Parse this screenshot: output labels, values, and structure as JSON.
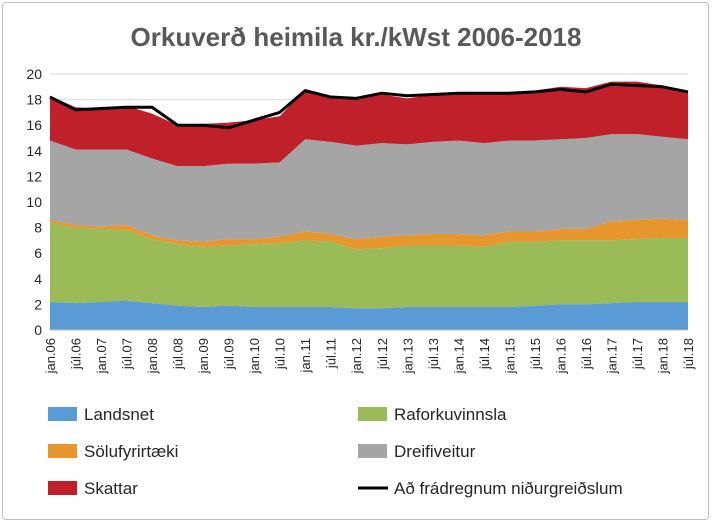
{
  "chart_data": {
    "type": "area",
    "stacked": true,
    "title": "Orkuverð heimila kr./kWst 2006-2018",
    "xlabel": "",
    "ylabel": "",
    "ylim": [
      0,
      20
    ],
    "yticks": [
      0,
      2,
      4,
      6,
      8,
      10,
      12,
      14,
      16,
      18,
      20
    ],
    "grid": true,
    "legend_placement": "bottom",
    "x_tick_labels": [
      "jan.06",
      "júl.06",
      "jan.07",
      "júl.07",
      "jan.08",
      "júl.08",
      "jan.09",
      "júl.09",
      "jan.10",
      "júl.10",
      "jan.11",
      "júl.11",
      "jan.12",
      "júl.12",
      "jan.13",
      "júl.13",
      "jan.14",
      "júl.14",
      "jan.15",
      "júl.15",
      "jan.16",
      "júl.16",
      "jan.17",
      "júl.17",
      "jan.18",
      "júl.18"
    ],
    "series": [
      {
        "name": "Landsnet",
        "color": "#5b9bd5",
        "values": [
          2.2,
          2.1,
          2.2,
          2.3,
          2.1,
          1.9,
          1.8,
          1.9,
          1.8,
          1.8,
          1.8,
          1.8,
          1.7,
          1.7,
          1.8,
          1.8,
          1.8,
          1.8,
          1.8,
          1.9,
          2.0,
          2.0,
          2.1,
          2.2,
          2.2,
          2.2
        ]
      },
      {
        "name": "Raforkuvinnsla",
        "color": "#9bbb59",
        "values": [
          6.2,
          5.9,
          5.7,
          5.5,
          5.0,
          4.8,
          4.7,
          4.7,
          4.9,
          5.0,
          5.2,
          5.1,
          4.6,
          4.7,
          4.8,
          4.8,
          4.8,
          4.7,
          5.1,
          5.0,
          5.0,
          5.0,
          4.9,
          4.9,
          5.0,
          5.0
        ]
      },
      {
        "name": "Sölufyrirtæki",
        "color": "#e8962e",
        "values": [
          0.2,
          0.2,
          0.2,
          0.4,
          0.3,
          0.3,
          0.4,
          0.5,
          0.4,
          0.5,
          0.7,
          0.6,
          0.8,
          0.9,
          0.8,
          0.9,
          0.9,
          0.9,
          0.8,
          0.8,
          0.9,
          0.9,
          1.5,
          1.5,
          1.5,
          1.4
        ]
      },
      {
        "name": "Dreifiveitur",
        "color": "#a5a5a5",
        "values": [
          6.2,
          5.9,
          6.0,
          5.9,
          6.0,
          5.8,
          5.9,
          5.9,
          5.9,
          5.8,
          7.2,
          7.2,
          7.3,
          7.3,
          7.1,
          7.2,
          7.3,
          7.2,
          7.1,
          7.1,
          7.0,
          7.1,
          6.8,
          6.7,
          6.4,
          6.3
        ]
      },
      {
        "name": "Skattar",
        "color": "#c0202a",
        "values": [
          3.5,
          3.3,
          3.2,
          3.4,
          3.5,
          3.2,
          3.3,
          3.2,
          3.4,
          3.6,
          3.9,
          3.5,
          3.7,
          3.8,
          3.6,
          3.7,
          3.7,
          3.8,
          3.8,
          3.9,
          4.1,
          3.9,
          4.1,
          4.1,
          4.0,
          3.8
        ]
      },
      {
        "name": "Að frádregnum niðurgreiðslum",
        "color": "#000000",
        "type": "line",
        "values": [
          18.2,
          17.2,
          17.3,
          17.4,
          17.4,
          16.0,
          16.0,
          15.8,
          16.4,
          17.0,
          18.7,
          18.2,
          18.1,
          18.5,
          18.3,
          18.4,
          18.5,
          18.5,
          18.5,
          18.6,
          18.8,
          18.6,
          19.2,
          19.1,
          19.0,
          18.6
        ]
      }
    ]
  }
}
